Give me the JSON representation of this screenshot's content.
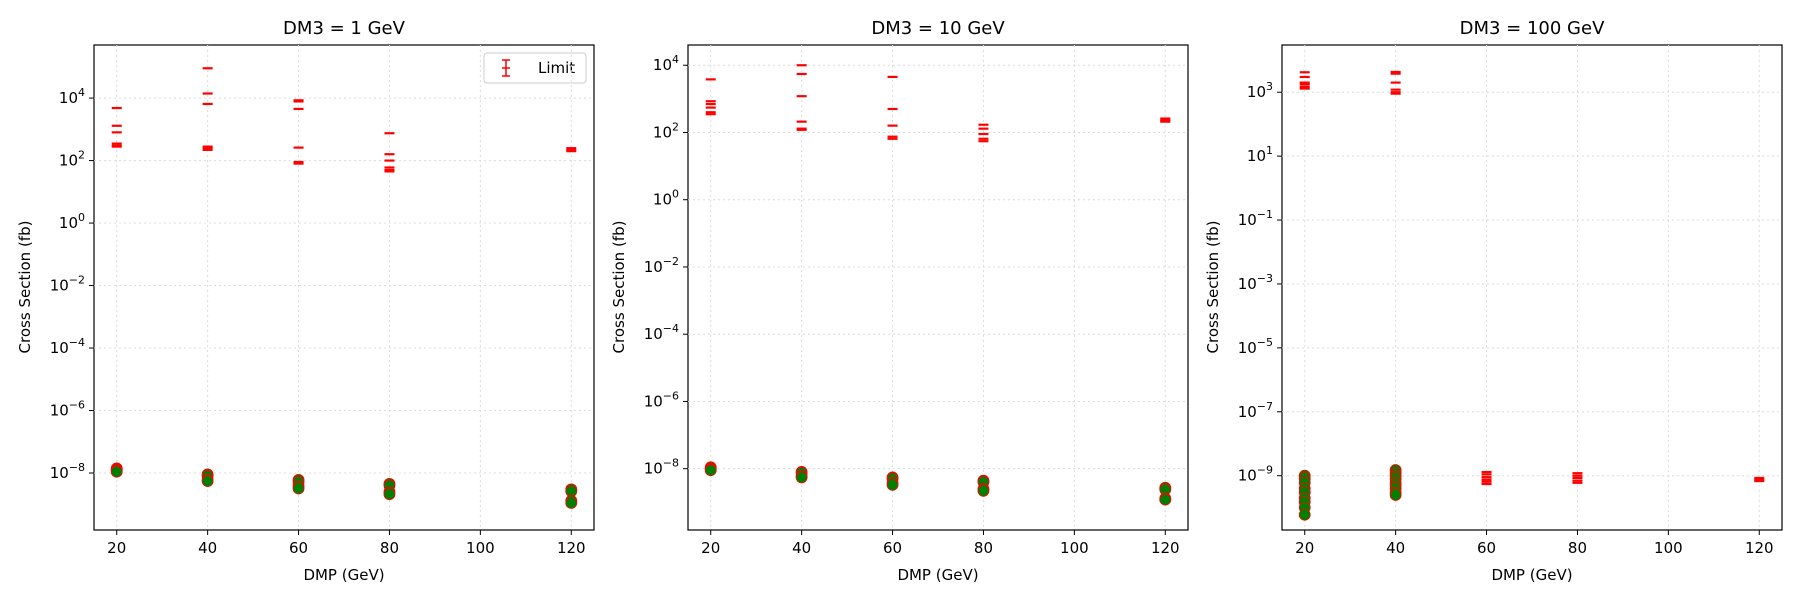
{
  "colors": {
    "limit": "#ff0000",
    "marker_fill": "#008000",
    "marker_edge": "#ff0000"
  },
  "chart_data": [
    {
      "type": "scatter",
      "title": "DM3 = 1 GeV",
      "xlabel": "DMP (GeV)",
      "ylabel": "Cross Section (fb)",
      "xscale": "linear",
      "yscale": "log",
      "xlim": [
        15,
        125
      ],
      "ylim": [
        1.5e-10,
        500000.0
      ],
      "xticks": [
        "20",
        "40",
        "60",
        "80",
        "100",
        "120"
      ],
      "ytick_exponents": [
        -8,
        -6,
        -4,
        -2,
        0,
        2,
        4
      ],
      "grid": true,
      "legend": {
        "label": "Limit",
        "placement": "top-right"
      },
      "series": [
        {
          "name": "Limit",
          "marker": "dash",
          "points": [
            {
              "x": 20,
              "y": [
                4800,
                1300,
                800,
                350,
                300,
                280
              ]
            },
            {
              "x": 40,
              "y": [
                90000,
                14000,
                6500,
                280,
                250,
                220
              ]
            },
            {
              "x": 60,
              "y": [
                8500,
                7800,
                4500,
                260,
                90,
                80
              ]
            },
            {
              "x": 80,
              "y": [
                750,
                160,
                100,
                60,
                50,
                45
              ]
            },
            {
              "x": 120,
              "y": [
                250,
                220,
                200
              ]
            }
          ]
        },
        {
          "marker": "circle",
          "points": [
            {
              "x": 20,
              "y": [
                1.4e-08,
                1.3e-08,
                1.2e-08,
                1.1e-08
              ]
            },
            {
              "x": 40,
              "y": [
                9e-09,
                8e-09,
                6e-09,
                5.5e-09
              ]
            },
            {
              "x": 60,
              "y": [
                6e-09,
                5e-09,
                3.8e-09,
                3.2e-09
              ]
            },
            {
              "x": 80,
              "y": [
                4.5e-09,
                4e-09,
                2.5e-09,
                2.1e-09
              ]
            },
            {
              "x": 120,
              "y": [
                3e-09,
                2.6e-09,
                1.3e-09,
                1.1e-09
              ]
            }
          ]
        }
      ]
    },
    {
      "type": "scatter",
      "title": "DM3 = 10 GeV",
      "xlabel": "DMP (GeV)",
      "ylabel": "Cross Section (fb)",
      "xscale": "linear",
      "yscale": "log",
      "xlim": [
        15,
        125
      ],
      "ylim": [
        1.5e-10,
        40000.0
      ],
      "xticks": [
        "20",
        "40",
        "60",
        "80",
        "100",
        "120"
      ],
      "ytick_exponents": [
        -8,
        -6,
        -4,
        -2,
        0,
        2,
        4
      ],
      "grid": true,
      "series": [
        {
          "marker": "dash",
          "points": [
            {
              "x": 20,
              "y": [
                3800,
                850,
                700,
                550,
                400,
                350
              ]
            },
            {
              "x": 40,
              "y": [
                10000,
                5500,
                1200,
                210,
                130,
                120
              ]
            },
            {
              "x": 60,
              "y": [
                4500,
                500,
                160,
                75,
                65
              ]
            },
            {
              "x": 80,
              "y": [
                170,
                130,
                90,
                65,
                55
              ]
            },
            {
              "x": 120,
              "y": [
                260,
                240,
                220,
                210
              ]
            }
          ]
        },
        {
          "marker": "circle",
          "points": [
            {
              "x": 20,
              "y": [
                1.1e-08,
                1e-08,
                9.5e-09,
                9e-09
              ]
            },
            {
              "x": 40,
              "y": [
                8e-09,
                7.5e-09,
                6e-09,
                5.5e-09
              ]
            },
            {
              "x": 60,
              "y": [
                5.5e-09,
                5e-09,
                3.8e-09,
                3.3e-09
              ]
            },
            {
              "x": 80,
              "y": [
                4.4e-09,
                4e-09,
                2.5e-09,
                2.2e-09
              ]
            },
            {
              "x": 120,
              "y": [
                2.7e-09,
                2.4e-09,
                1.3e-09,
                1.2e-09
              ]
            }
          ]
        }
      ]
    },
    {
      "type": "scatter",
      "title": "DM3 = 100 GeV",
      "xlabel": "DMP (GeV)",
      "ylabel": "Cross Section (fb)",
      "xscale": "linear",
      "yscale": "log",
      "xlim": [
        15,
        125
      ],
      "ylim": [
        2e-11,
        30000.0
      ],
      "xticks": [
        "20",
        "40",
        "60",
        "80",
        "100",
        "120"
      ],
      "ytick_exponents": [
        -9,
        -7,
        -5,
        -3,
        -1,
        1,
        3
      ],
      "grid": true,
      "series": [
        {
          "marker": "dash",
          "points": [
            {
              "x": 20,
              "y": [
                4200,
                3000,
                2000,
                1800,
                1500,
                1300
              ]
            },
            {
              "x": 40,
              "y": [
                4300,
                3800,
                2000,
                1200,
                1000,
                900
              ]
            },
            {
              "x": 60,
              "y": [
                1.3e-09,
                1.1e-09,
                9e-10,
                7.5e-10,
                6.5e-10,
                5.5e-10
              ]
            },
            {
              "x": 80,
              "y": [
                1.2e-09,
                1e-09,
                8.5e-10,
                7e-10,
                6e-10
              ]
            },
            {
              "x": 120,
              "y": [
                8.5e-10,
                7.5e-10,
                6.8e-10
              ]
            }
          ]
        },
        {
          "marker": "circle",
          "points": [
            {
              "x": 20,
              "y": [
                1e-09,
                8e-10,
                6e-10,
                4e-10,
                3e-10,
                2e-10,
                1.5e-10,
                1e-10,
                6e-11
              ]
            },
            {
              "x": 40,
              "y": [
                1.5e-09,
                1.2e-09,
                1e-09,
                8e-10,
                6e-10,
                5e-10,
                4e-10,
                3e-10,
                2.5e-10
              ]
            }
          ]
        }
      ]
    }
  ]
}
